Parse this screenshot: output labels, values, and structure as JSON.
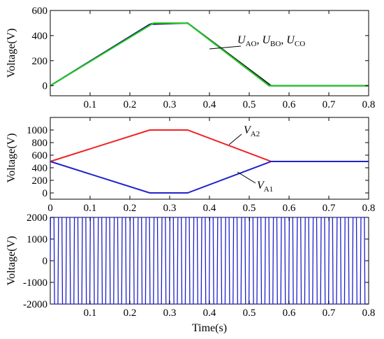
{
  "chart_data": [
    {
      "type": "line",
      "xlim": [
        0,
        0.8
      ],
      "ylim": [
        -80,
        600
      ],
      "xticks": [
        0.1,
        0.2,
        0.3,
        0.4,
        0.5,
        0.6,
        0.7,
        0.8
      ],
      "yticks": [
        0,
        200,
        400,
        600
      ],
      "ylabel": "Voltage(V)",
      "grid": false,
      "series": [
        {
          "key": "UAO",
          "color": "#1f1fd0",
          "x": [
            0,
            0.25,
            0.345,
            0.55,
            0.8
          ],
          "y": [
            0,
            490,
            500,
            0,
            0
          ]
        },
        {
          "key": "UBO",
          "color": "#1a1a1a",
          "x": [
            0,
            0.255,
            0.345,
            0.555,
            0.8
          ],
          "y": [
            0,
            495,
            500,
            0,
            0
          ]
        },
        {
          "key": "UCO",
          "color": "#22cc22",
          "x": [
            0,
            0.26,
            0.345,
            0.55,
            0.8
          ],
          "y": [
            0,
            500,
            500,
            0,
            0
          ]
        }
      ],
      "annotation": {
        "parts": [
          {
            "v": "U",
            "s": "AO"
          },
          {
            "v": "U",
            "s": "BO"
          },
          {
            "v": "U",
            "s": "CO"
          }
        ]
      }
    },
    {
      "type": "line",
      "xlim": [
        0,
        0.8
      ],
      "ylim": [
        -100,
        1200
      ],
      "xticks": [
        0,
        0.1,
        0.2,
        0.3,
        0.4,
        0.5,
        0.6,
        0.7,
        0.8
      ],
      "xtick_labels": [
        "0",
        "0.1",
        "0.2",
        "0.3",
        "0.4",
        "0.5",
        "0.6",
        "0.7",
        "0.8"
      ],
      "yticks": [
        0,
        200,
        400,
        600,
        800,
        1000
      ],
      "ylabel": "Voltage(V)",
      "grid": false,
      "series": [
        {
          "key": "VA2",
          "color": "#ee2222",
          "x": [
            0,
            0.25,
            0.345,
            0.555,
            0.8
          ],
          "y": [
            500,
            1000,
            1000,
            500,
            500
          ]
        },
        {
          "key": "VA1",
          "color": "#2222cc",
          "x": [
            0,
            0.25,
            0.345,
            0.555,
            0.8
          ],
          "y": [
            500,
            0,
            0,
            500,
            500
          ]
        }
      ],
      "annotations": [
        {
          "v": "V",
          "s": "A2"
        },
        {
          "v": "V",
          "s": "A1"
        }
      ]
    },
    {
      "type": "line",
      "xlim": [
        0,
        0.8
      ],
      "ylim": [
        -2000,
        2000
      ],
      "xticks": [
        0.1,
        0.2,
        0.3,
        0.4,
        0.5,
        0.6,
        0.7,
        0.8
      ],
      "yticks": [
        -2000,
        -1000,
        0,
        1000,
        2000
      ],
      "ylabel": "Voltage(V)",
      "xlabel": "Time(s)",
      "grid": false,
      "series": [
        {
          "key": "line-voltage",
          "color": "#1f1fcc",
          "shape": "square-pulse",
          "amplitude": 2000,
          "frequency_hz": 50
        }
      ]
    }
  ]
}
